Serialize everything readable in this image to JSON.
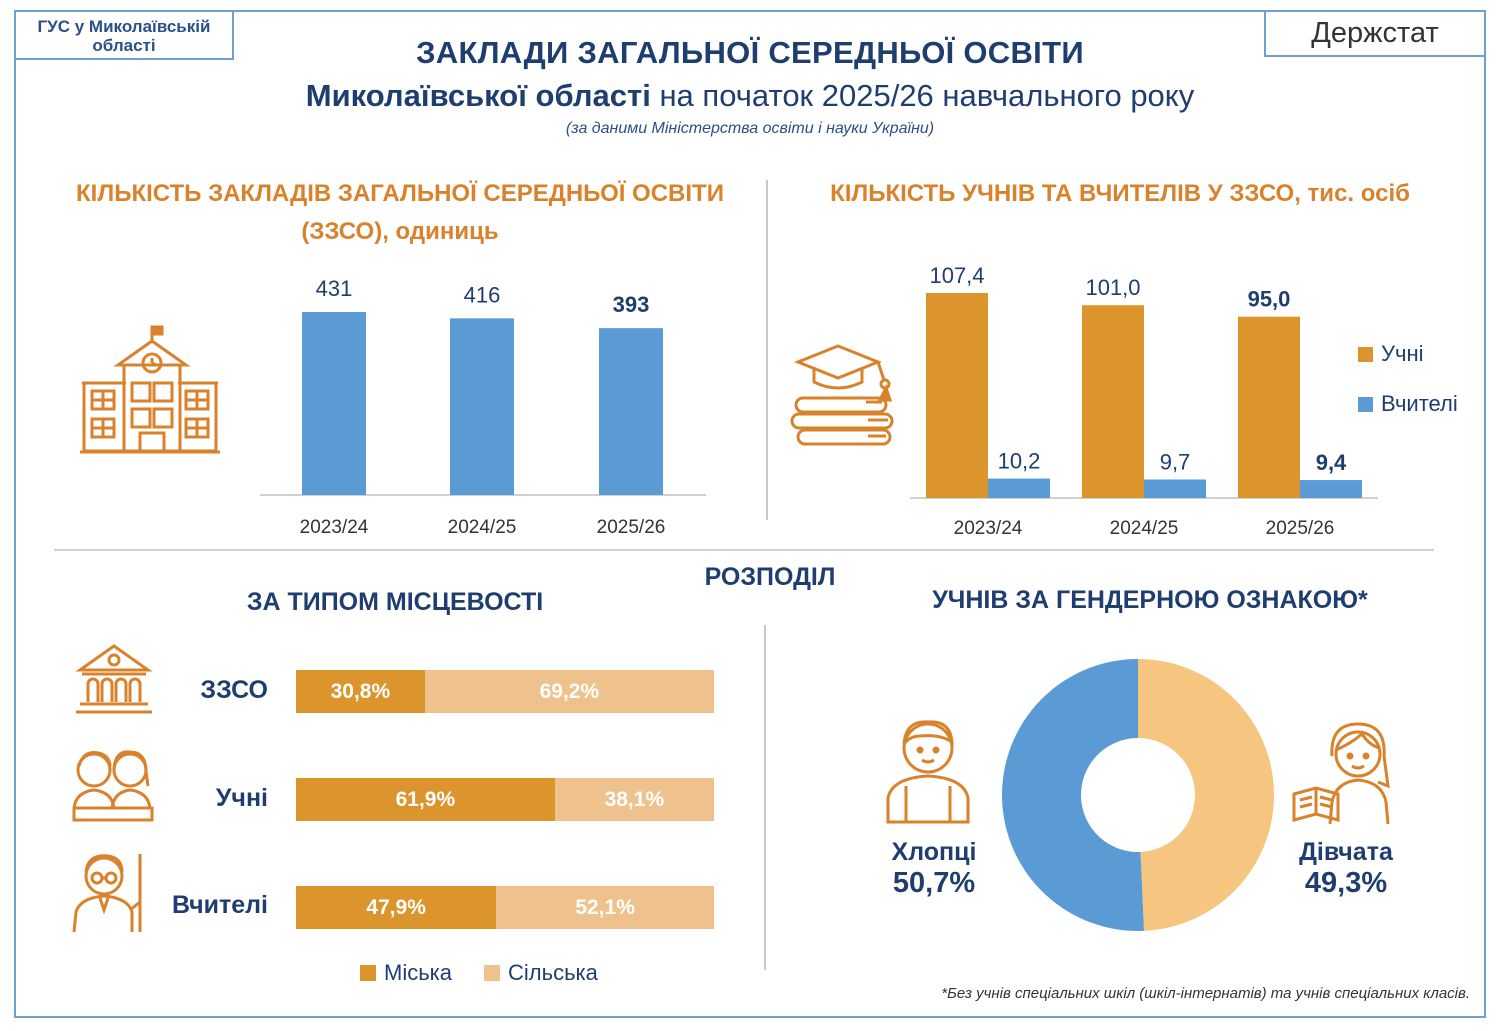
{
  "header": {
    "source_badge": "ГУС у Миколаївській області",
    "brand": "Держстат",
    "title_line1": "ЗАКЛАДИ ЗАГАЛЬНОЇ СЕРЕДНЬОЇ ОСВІТИ",
    "title_line2_bold": "Миколаївської області",
    "title_line2_rest": " на початок 2025/26 навчального року",
    "subtitle": "(за даними Міністерства освіти і науки України)"
  },
  "sections": {
    "schools_title": "КІЛЬКІСТЬ ЗАКЛАДІВ ЗАГАЛЬНОЇ СЕРЕДНЬОЇ ОСВІТИ (ЗЗСО), одиниць",
    "students_title": "КІЛЬКІСТЬ УЧНІВ ТА ВЧИТЕЛІВ У ЗЗСО, тис. осіб",
    "distribution": "РОЗПОДІЛ",
    "by_locality": "ЗА ТИПОМ МІСЦЕВОСТІ",
    "by_gender": "УЧНІВ ЗА ГЕНДЕРНОЮ ОЗНАКОЮ*"
  },
  "footnote": "*Без учнів спеціальних шкіл (шкіл-інтернатів) та учнів спеціальних класів.",
  "colors": {
    "blue": "#5b9bd5",
    "orange": "#dc952c",
    "light_orange": "#efc28d",
    "navy": "#1f3e70",
    "heading_orange": "#d9822b",
    "pie_orange": "#f6c57f"
  },
  "chart_data": [
    {
      "type": "bar",
      "categories": [
        "2023/24",
        "2024/25",
        "2025/26"
      ],
      "values": [
        431,
        416,
        393
      ],
      "labels": [
        "431",
        "416",
        "393"
      ],
      "title": "КІЛЬКІСТЬ ЗАКЛАДІВ ЗАГАЛЬНОЇ СЕРЕДНЬОЇ ОСВІТИ (ЗЗСО), одиниць",
      "ylim": [
        0,
        450
      ]
    },
    {
      "type": "bar",
      "categories": [
        "2023/24",
        "2024/25",
        "2025/26"
      ],
      "series": [
        {
          "name": "Учні",
          "values": [
            107.4,
            101.0,
            95.0
          ],
          "labels": [
            "107,4",
            "101,0",
            "95,0"
          ]
        },
        {
          "name": "Вчителі",
          "values": [
            10.2,
            9.7,
            9.4
          ],
          "labels": [
            "10,2",
            "9,7",
            "9,4"
          ]
        }
      ],
      "title": "КІЛЬКІСТЬ УЧНІВ ТА ВЧИТЕЛІВ У ЗЗСО, тис. осіб",
      "ylim": [
        0,
        125
      ],
      "legend": "right"
    },
    {
      "type": "bar",
      "orientation": "horizontal-stacked",
      "categories": [
        "ЗЗСО",
        "Учні",
        "Вчителі"
      ],
      "series": [
        {
          "name": "Міська",
          "values": [
            30.8,
            61.9,
            47.9
          ],
          "labels": [
            "30,8%",
            "61,9%",
            "47,9%"
          ]
        },
        {
          "name": "Сільська",
          "values": [
            69.2,
            38.1,
            52.1
          ],
          "labels": [
            "69,2%",
            "38,1%",
            "52,1%"
          ]
        }
      ],
      "title": "ЗА ТИПОМ МІСЦЕВОСТІ",
      "legend": "bottom"
    },
    {
      "type": "pie",
      "donut": true,
      "categories": [
        "Хлопці",
        "Дівчата"
      ],
      "values": [
        50.7,
        49.3
      ],
      "labels": [
        "50,7%",
        "49,3%"
      ],
      "title": "УЧНІВ ЗА ГЕНДЕРНОЮ ОЗНАКОЮ*"
    }
  ]
}
